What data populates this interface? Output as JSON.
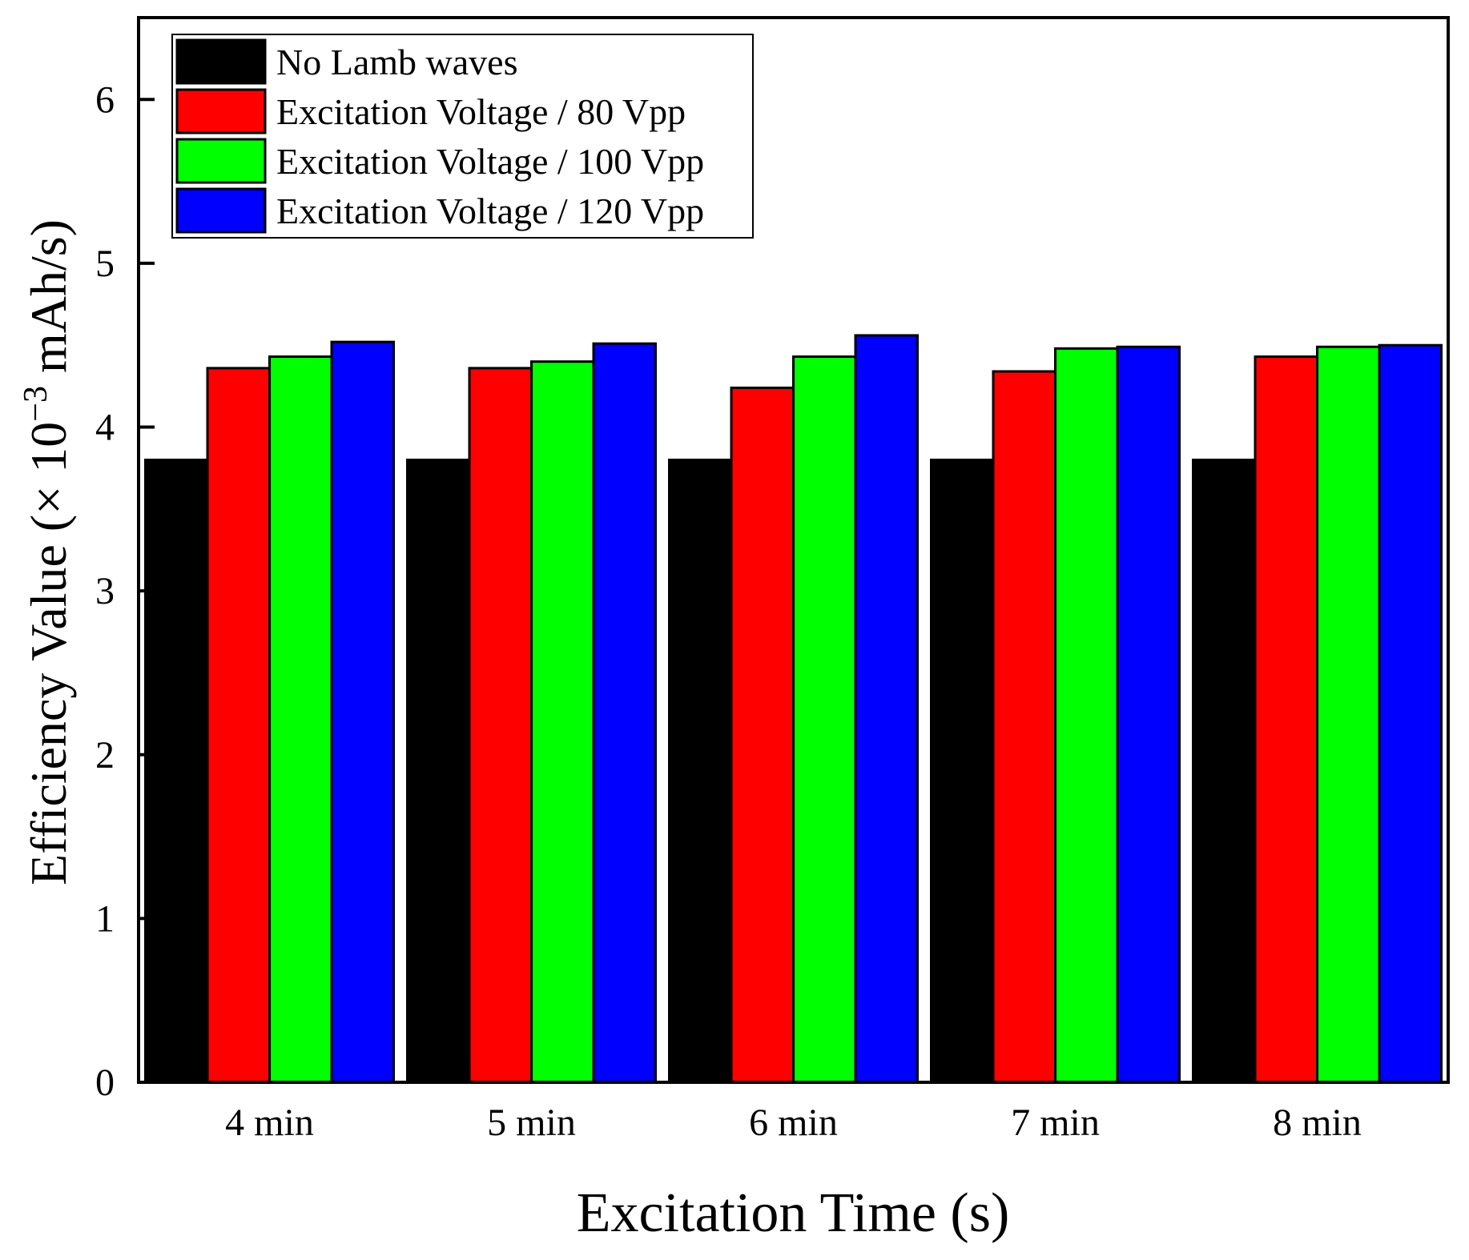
{
  "chart_data": {
    "type": "bar",
    "title": "",
    "xlabel": "Excitation Time (s)",
    "ylabel": {
      "prefix": "Efficiency Value (× 10",
      "exponent": "−3",
      "suffix": " mAh/s)"
    },
    "ylim": [
      0,
      6.5
    ],
    "yticks": [
      0,
      1,
      2,
      3,
      4,
      5,
      6
    ],
    "categories": [
      "4 min",
      "5 min",
      "6 min",
      "7 min",
      "8 min"
    ],
    "legend_position": "top-left",
    "series": [
      {
        "name": "No Lamb waves",
        "color": "#000000",
        "values": [
          3.8,
          3.8,
          3.8,
          3.8,
          3.8
        ]
      },
      {
        "name": "Excitation Voltage / 80 Vpp",
        "color": "#ff0000",
        "values": [
          4.36,
          4.36,
          4.24,
          4.34,
          4.43
        ]
      },
      {
        "name": "Excitation Voltage / 100 Vpp",
        "color": "#00ff00",
        "values": [
          4.43,
          4.4,
          4.43,
          4.48,
          4.49
        ]
      },
      {
        "name": "Excitation Voltage / 120 Vpp",
        "color": "#0000ff",
        "values": [
          4.52,
          4.51,
          4.56,
          4.49,
          4.5
        ]
      }
    ]
  }
}
